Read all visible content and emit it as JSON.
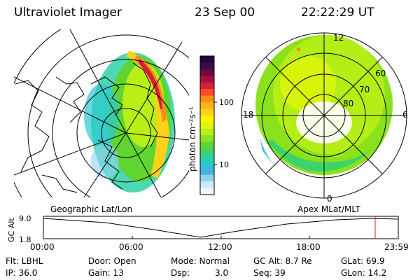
{
  "header": {
    "title": "Ultraviolet Imager",
    "date": "23 Sep 00",
    "time": "22:22:29 UT"
  },
  "colorbar": {
    "unit_label": "photon cm⁻²s⁻¹",
    "ticks": [
      "100",
      "10"
    ],
    "colors": [
      "#1b0b3a",
      "#3a0a4a",
      "#6b0a3c",
      "#a6103a",
      "#d6203a",
      "#ff4a2a",
      "#ff8c1a",
      "#ffb21a",
      "#ffd11a",
      "#fff200",
      "#e0f50a",
      "#b7ef17",
      "#8be21c",
      "#60d430",
      "#3ed36a",
      "#2fd0a6",
      "#2cc7d0",
      "#45b5e0",
      "#8fd3ee",
      "#cfeaf6",
      "#eef8fb"
    ]
  },
  "geo_panel": {
    "label": "Geographic Lat/Lon"
  },
  "mag_panel": {
    "label": "Apex MLat/MLT",
    "lat_labels": [
      "60",
      "70",
      "80"
    ],
    "mlt_labels": [
      "12",
      "18",
      "6",
      "0"
    ]
  },
  "timeline": {
    "axis_label": "GC Alt",
    "y_ticks": [
      "9.0",
      "1.8"
    ],
    "x_ticks": [
      "00:00",
      "06:00",
      "12:00",
      "18:00",
      "23:59"
    ],
    "marker_color": "#d12020"
  },
  "info": {
    "filter": "Flt: LBHL",
    "ip": "IP: 36.0",
    "door": "Door: Open",
    "gain": "Gain: 13",
    "mode": "Mode: Normal",
    "dsp_label": "Dsp:",
    "dsp_value": "3.0",
    "gc_alt": "GC Alt: 8.7 Re",
    "seq": "Seq: 39",
    "glat": "GLat: 69.9",
    "glon": "GLon: 14.2"
  }
}
